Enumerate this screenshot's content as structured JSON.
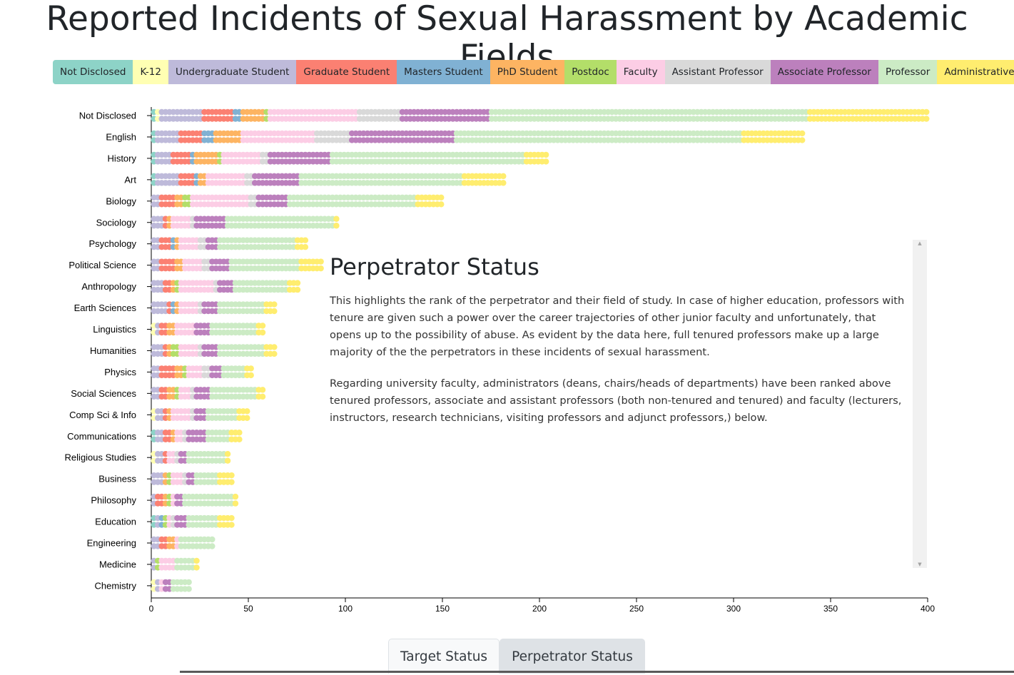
{
  "title": "Reported Incidents of Sexual Harassment by Academic Fields",
  "legend": [
    {
      "label": "Not Disclosed",
      "color": "#8dd3c7"
    },
    {
      "label": "K-12",
      "color": "#ffffb3"
    },
    {
      "label": "Undergraduate Student",
      "color": "#bebada"
    },
    {
      "label": "Graduate Student",
      "color": "#fb8072"
    },
    {
      "label": "Masters Student",
      "color": "#80b1d3"
    },
    {
      "label": "PhD Student",
      "color": "#fdb462"
    },
    {
      "label": "Postdoc",
      "color": "#b3de69"
    },
    {
      "label": "Faculty",
      "color": "#fccde5"
    },
    {
      "label": "Assistant Professor",
      "color": "#d9d9d9"
    },
    {
      "label": "Associate Professor",
      "color": "#bc80bd"
    },
    {
      "label": "Professor",
      "color": "#ccebc5"
    },
    {
      "label": "Administrative",
      "color": "#ffed6f"
    }
  ],
  "chart_data": {
    "type": "bar",
    "stacked": true,
    "categories": [
      "Not Disclosed",
      "English",
      "History",
      "Art",
      "Biology",
      "Sociology",
      "Psychology",
      "Political Science",
      "Anthropology",
      "Earth Sciences",
      "Linguistics",
      "Humanities",
      "Physics",
      "Social Sciences",
      "Comp Sci & Info",
      "Communications",
      "Religious Studies",
      "Business",
      "Philosophy",
      "Education",
      "Engineering",
      "Medicine",
      "Chemistry"
    ],
    "series": [
      {
        "name": "Not Disclosed",
        "values": [
          2,
          2,
          2,
          2,
          0,
          0,
          0,
          0,
          0,
          0,
          0,
          0,
          0,
          0,
          0,
          2,
          0,
          0,
          0,
          2,
          0,
          0,
          0
        ]
      },
      {
        "name": "K-12",
        "values": [
          2,
          0,
          0,
          0,
          0,
          0,
          0,
          0,
          0,
          0,
          2,
          0,
          0,
          0,
          2,
          0,
          2,
          0,
          0,
          0,
          0,
          0,
          2
        ]
      },
      {
        "name": "Undergraduate Student",
        "values": [
          22,
          12,
          8,
          12,
          4,
          6,
          4,
          4,
          6,
          8,
          2,
          6,
          4,
          4,
          4,
          4,
          4,
          6,
          2,
          2,
          4,
          2,
          2
        ]
      },
      {
        "name": "Graduate Student",
        "values": [
          16,
          12,
          10,
          8,
          8,
          2,
          6,
          8,
          4,
          2,
          4,
          2,
          8,
          4,
          2,
          4,
          2,
          0,
          4,
          0,
          4,
          0,
          0
        ]
      },
      {
        "name": "Masters Student",
        "values": [
          4,
          6,
          2,
          2,
          0,
          0,
          2,
          0,
          0,
          2,
          0,
          0,
          0,
          0,
          0,
          0,
          0,
          0,
          0,
          2,
          0,
          0,
          0
        ]
      },
      {
        "name": "PhD Student",
        "values": [
          12,
          14,
          12,
          4,
          4,
          2,
          2,
          4,
          2,
          2,
          4,
          2,
          4,
          4,
          2,
          2,
          0,
          2,
          2,
          0,
          4,
          0,
          0
        ]
      },
      {
        "name": "Postdoc",
        "values": [
          2,
          0,
          2,
          0,
          4,
          0,
          0,
          0,
          2,
          0,
          0,
          4,
          2,
          2,
          0,
          0,
          0,
          2,
          2,
          2,
          0,
          2,
          0
        ]
      },
      {
        "name": "Faculty",
        "values": [
          46,
          38,
          20,
          20,
          30,
          10,
          10,
          10,
          18,
          10,
          10,
          10,
          8,
          6,
          10,
          4,
          4,
          6,
          2,
          2,
          2,
          8,
          2
        ]
      },
      {
        "name": "Assistant Professor",
        "values": [
          22,
          18,
          4,
          4,
          4,
          2,
          4,
          4,
          2,
          2,
          0,
          2,
          4,
          2,
          2,
          2,
          2,
          2,
          0,
          2,
          0,
          0,
          0
        ]
      },
      {
        "name": "Associate Professor",
        "values": [
          46,
          54,
          32,
          24,
          16,
          16,
          6,
          10,
          8,
          8,
          8,
          8,
          6,
          8,
          6,
          10,
          4,
          4,
          4,
          6,
          0,
          0,
          4
        ]
      },
      {
        "name": "Professor",
        "values": [
          164,
          148,
          100,
          84,
          66,
          56,
          40,
          36,
          28,
          24,
          24,
          24,
          12,
          24,
          16,
          12,
          20,
          12,
          26,
          16,
          18,
          10,
          10
        ]
      },
      {
        "name": "Administrative",
        "values": [
          62,
          32,
          12,
          22,
          14,
          2,
          6,
          12,
          6,
          6,
          4,
          6,
          4,
          4,
          6,
          6,
          2,
          8,
          2,
          8,
          0,
          2,
          0
        ]
      }
    ],
    "xlim": [
      0,
      400
    ],
    "xticks": [
      0,
      50,
      100,
      150,
      200,
      250,
      300,
      350,
      400
    ]
  },
  "info": {
    "title": "Perpetrator Status",
    "paragraphs": [
      "This highlights the rank of the perpetrator and their field of study. In case of higher education, professors with tenure are given such a power over the career trajectories of other junior faculty and unfortunately, that opens up to the possibility of abuse. As evident by the data here, full tenured professors make up a large majority of the the perpetrators in these incidents of sexual harassment.",
      "Regarding university faculty, administrators (deans, chairs/heads of departments) have been ranked above tenured professors, associate and assistant professors (both non-tenured and tenured) and faculty (lecturers, instructors, research technicians, visiting professors and adjunct professors,) below."
    ]
  },
  "tabs": [
    {
      "label": "Target Status",
      "active": false
    },
    {
      "label": "Perpetrator Status",
      "active": true
    }
  ]
}
